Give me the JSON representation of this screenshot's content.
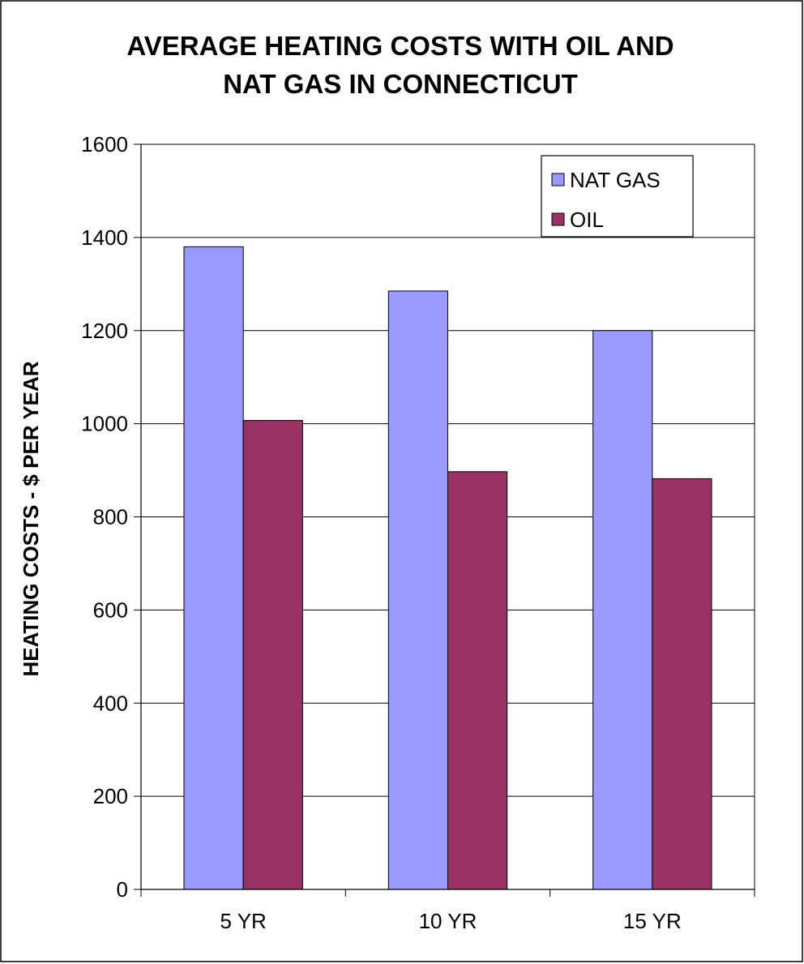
{
  "chart_data": {
    "type": "bar",
    "title_lines": [
      "AVERAGE HEATING COSTS WITH OIL AND",
      "NAT GAS  IN CONNECTICUT"
    ],
    "xlabel": "",
    "ylabel": "HEATING COSTS - $ PER YEAR",
    "categories": [
      "5 YR",
      "10 YR",
      "15 YR"
    ],
    "series": [
      {
        "name": "NAT GAS",
        "color": "#9999ff",
        "values": [
          1380,
          1285,
          1200
        ]
      },
      {
        "name": "OIL",
        "color": "#993366",
        "values": [
          1007,
          897,
          882
        ]
      }
    ],
    "ylim": [
      0,
      1600
    ],
    "yticks": [
      0,
      200,
      400,
      600,
      800,
      1000,
      1200,
      1400,
      1600
    ],
    "grid": true,
    "legend_position": "top-right"
  }
}
